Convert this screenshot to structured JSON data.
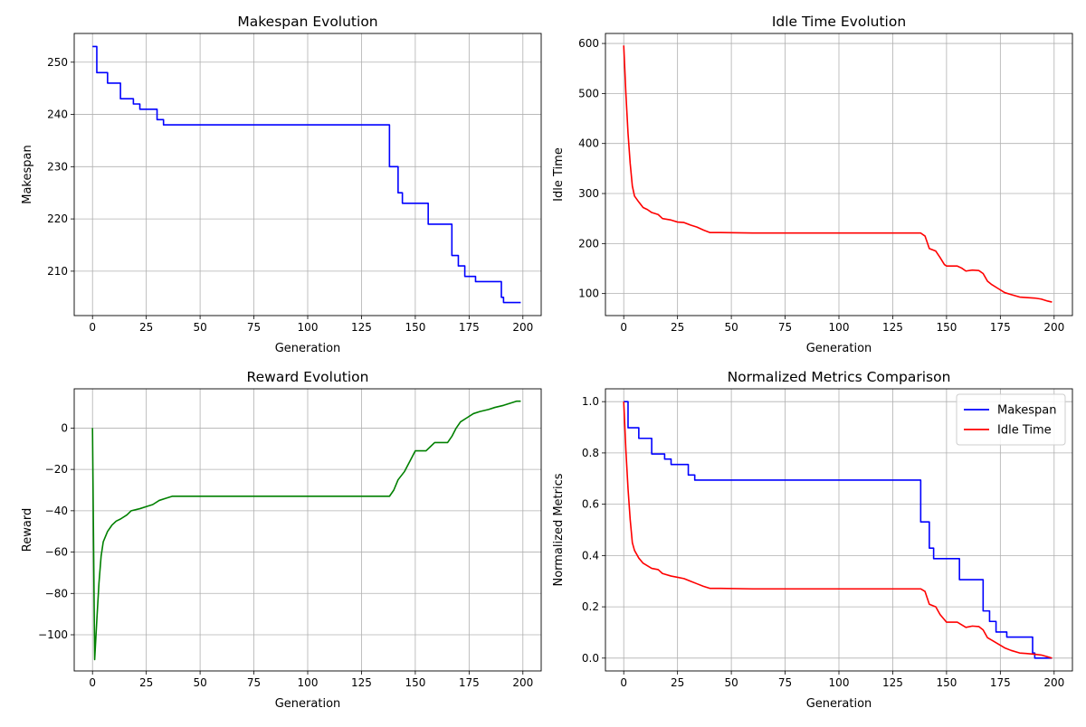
{
  "chart_data": [
    {
      "type": "line",
      "title": "Makespan Evolution",
      "xlabel": "Generation",
      "ylabel": "Makespan",
      "xlim": [
        -8.5,
        208.5
      ],
      "ylim": [
        201.5,
        255.5
      ],
      "xticks": [
        0,
        25,
        50,
        75,
        100,
        125,
        150,
        175,
        200
      ],
      "yticks": [
        210,
        220,
        230,
        240,
        250
      ],
      "grid": true,
      "series": [
        {
          "color": "#0000ff",
          "step": true,
          "x": [
            0,
            2,
            7,
            13,
            19,
            22,
            30,
            33,
            138,
            142,
            144,
            156,
            167,
            170,
            173,
            178,
            190,
            191,
            199
          ],
          "y": [
            253,
            248,
            246,
            243,
            242,
            241,
            239,
            238,
            230,
            225,
            223,
            219,
            213,
            211,
            209,
            208,
            205,
            204,
            204
          ]
        }
      ]
    },
    {
      "type": "line",
      "title": "Idle Time Evolution",
      "xlabel": "Generation",
      "ylabel": "Idle Time",
      "xlim": [
        -8.5,
        208.5
      ],
      "ylim": [
        56,
        620
      ],
      "xticks": [
        0,
        25,
        50,
        75,
        100,
        125,
        150,
        175,
        200
      ],
      "yticks": [
        100,
        200,
        300,
        400,
        500,
        600
      ],
      "grid": true,
      "series": [
        {
          "color": "#ff0000",
          "x": [
            0,
            1,
            2,
            3,
            4,
            5,
            7,
            9,
            11,
            13,
            16,
            18,
            22,
            25,
            28,
            31,
            34,
            37,
            40,
            45,
            60,
            100,
            130,
            138,
            140,
            142,
            145,
            147,
            149,
            150,
            155,
            157,
            159,
            162,
            165,
            167,
            169,
            171,
            174,
            177,
            180,
            184,
            187,
            191,
            194,
            197,
            199
          ],
          "y": [
            596,
            500,
            420,
            360,
            315,
            295,
            283,
            272,
            268,
            262,
            258,
            250,
            247,
            243,
            242,
            237,
            233,
            227,
            222,
            222,
            221,
            221,
            221,
            221,
            215,
            190,
            185,
            172,
            158,
            155,
            155,
            151,
            145,
            147,
            146,
            140,
            125,
            118,
            110,
            102,
            98,
            93,
            92,
            91,
            89,
            85,
            83
          ]
        }
      ]
    },
    {
      "type": "line",
      "title": "Reward Evolution",
      "xlabel": "Generation",
      "ylabel": "Reward",
      "xlim": [
        -8.5,
        208.5
      ],
      "ylim": [
        -117.5,
        19
      ],
      "xticks": [
        0,
        25,
        50,
        75,
        100,
        125,
        150,
        175,
        200
      ],
      "yticks": [
        -100,
        -80,
        -60,
        -40,
        -20,
        0
      ],
      "grid": true,
      "series": [
        {
          "color": "#008000",
          "x": [
            0,
            1,
            2,
            3,
            4,
            5,
            7,
            9,
            11,
            13,
            16,
            18,
            22,
            25,
            28,
            31,
            34,
            37,
            40,
            45,
            60,
            100,
            130,
            138,
            140,
            142,
            145,
            147,
            149,
            150,
            155,
            157,
            159,
            162,
            165,
            167,
            169,
            171,
            174,
            177,
            180,
            184,
            187,
            191,
            194,
            197,
            199
          ],
          "y": [
            0,
            -112,
            -93,
            -75,
            -62,
            -55,
            -50,
            -47,
            -45,
            -44,
            -42,
            -40,
            -39,
            -38,
            -37,
            -35,
            -34,
            -33,
            -33,
            -33,
            -33,
            -33,
            -33,
            -33,
            -30,
            -25,
            -21,
            -17,
            -13,
            -11,
            -11,
            -9,
            -7,
            -7,
            -7,
            -4,
            0,
            3,
            5,
            7,
            8,
            9,
            10,
            11,
            12,
            13,
            13
          ]
        }
      ]
    },
    {
      "type": "line",
      "title": "Normalized Metrics Comparison",
      "xlabel": "Generation",
      "ylabel": "Normalized Metrics",
      "xlim": [
        -8.5,
        208.5
      ],
      "ylim": [
        -0.05,
        1.05
      ],
      "xticks": [
        0,
        25,
        50,
        75,
        100,
        125,
        150,
        175,
        200
      ],
      "yticks": [
        0.0,
        0.2,
        0.4,
        0.6,
        0.8,
        1.0
      ],
      "grid": true,
      "legend": "top-right",
      "series": [
        {
          "name": "Makespan",
          "color": "#0000ff",
          "step": true,
          "x": [
            0,
            2,
            7,
            13,
            19,
            22,
            30,
            33,
            138,
            142,
            144,
            156,
            167,
            170,
            173,
            178,
            190,
            191,
            199
          ],
          "y": [
            1.0,
            0.898,
            0.857,
            0.796,
            0.776,
            0.755,
            0.714,
            0.694,
            0.531,
            0.429,
            0.388,
            0.306,
            0.184,
            0.143,
            0.102,
            0.082,
            0.02,
            0.0,
            0.0
          ]
        },
        {
          "name": "Idle Time",
          "color": "#ff0000",
          "x": [
            0,
            1,
            2,
            3,
            4,
            5,
            7,
            9,
            11,
            13,
            16,
            18,
            22,
            25,
            28,
            31,
            34,
            37,
            40,
            45,
            60,
            100,
            130,
            138,
            140,
            142,
            145,
            147,
            149,
            150,
            155,
            157,
            159,
            162,
            165,
            167,
            169,
            171,
            174,
            177,
            180,
            184,
            187,
            191,
            194,
            197,
            199
          ],
          "y": [
            1.0,
            0.81,
            0.66,
            0.54,
            0.45,
            0.42,
            0.39,
            0.37,
            0.36,
            0.35,
            0.345,
            0.33,
            0.32,
            0.315,
            0.31,
            0.3,
            0.29,
            0.28,
            0.272,
            0.272,
            0.27,
            0.27,
            0.27,
            0.27,
            0.26,
            0.21,
            0.2,
            0.17,
            0.15,
            0.14,
            0.14,
            0.13,
            0.12,
            0.125,
            0.123,
            0.11,
            0.08,
            0.07,
            0.055,
            0.04,
            0.03,
            0.02,
            0.018,
            0.015,
            0.012,
            0.005,
            0.0
          ]
        }
      ]
    }
  ]
}
